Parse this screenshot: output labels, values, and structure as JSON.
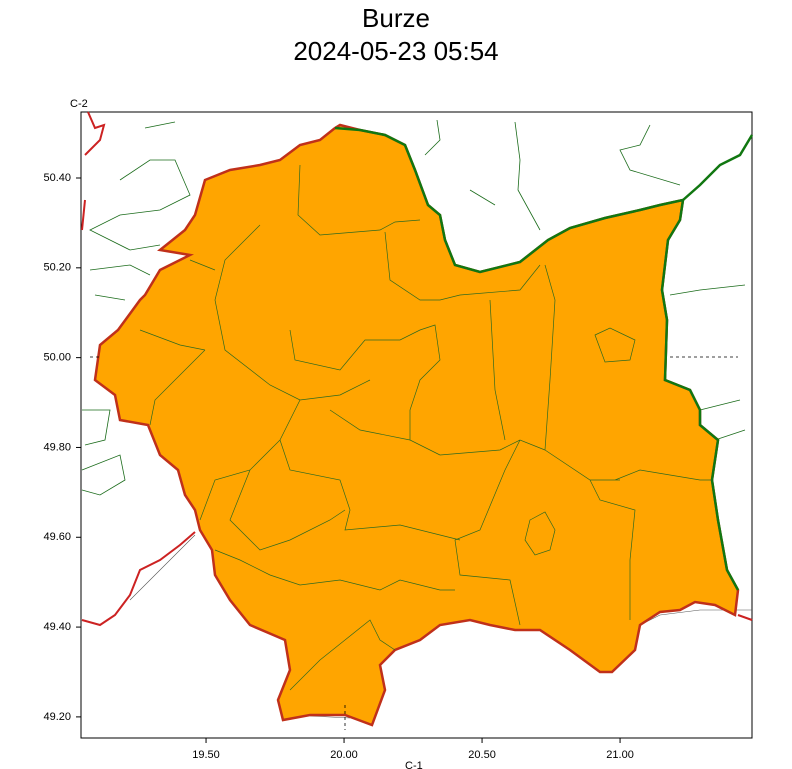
{
  "title": "Burze",
  "subtitle": "2024-05-23 05:54",
  "axes": {
    "y_label": "C-2",
    "x_label": "C-1",
    "xlim": [
      19.047,
      21.478
    ],
    "ylim": [
      49.153,
      50.547
    ],
    "yticks": [
      {
        "value": 50.4,
        "label": "50.40"
      },
      {
        "value": 50.2,
        "label": "50.20"
      },
      {
        "value": 50.0,
        "label": "50.00"
      },
      {
        "value": 49.8,
        "label": "49.80"
      },
      {
        "value": 49.6,
        "label": "49.60"
      },
      {
        "value": 49.4,
        "label": "49.40"
      },
      {
        "value": 49.2,
        "label": "49.20"
      }
    ],
    "xticks": [
      {
        "value": 19.5,
        "label": "19.50"
      },
      {
        "value": 20.0,
        "label": "20.00"
      },
      {
        "value": 20.5,
        "label": "20.50"
      },
      {
        "value": 21.0,
        "label": "21.00"
      }
    ]
  }
}
